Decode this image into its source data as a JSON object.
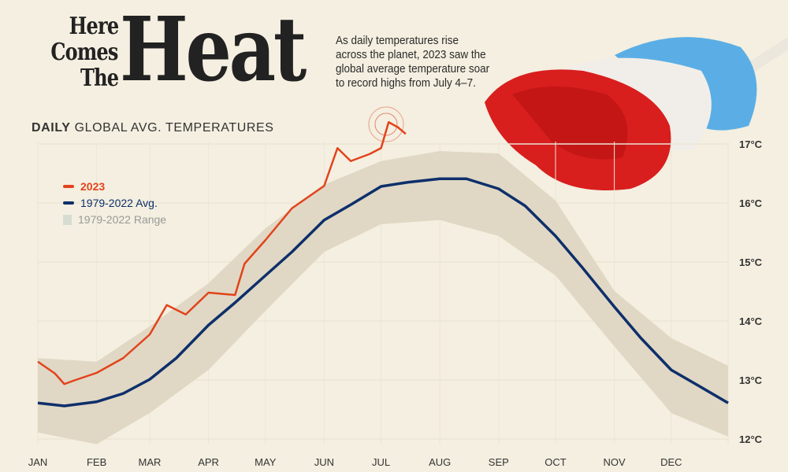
{
  "title": {
    "line1": "Here",
    "line2": "Comes",
    "line3": "The",
    "big": "Heat"
  },
  "description": "As daily temperatures rise across the planet, 2023 saw the global average temperature soar to record highs from July 4–7.",
  "subtitle": {
    "bold": "DAILY",
    "rest": "GLOBAL AVG. TEMPERATURES"
  },
  "legend": [
    {
      "label": "2023",
      "color": "#e2431c"
    },
    {
      "label": "1979-2022 Avg.",
      "color": "#0e2f6b"
    },
    {
      "label": "1979-2022 Range",
      "color": "#d6dcd2"
    }
  ],
  "illustration": "red-white-blue-popsicle",
  "chart_data": {
    "type": "line",
    "title": "DAILY GLOBAL AVG. TEMPERATURES",
    "x_ticks": [
      "JAN",
      "FEB",
      "MAR",
      "APR",
      "MAY",
      "JUN",
      "JUL",
      "AUG",
      "SEP",
      "OCT",
      "NOV",
      "DEC"
    ],
    "y_ticks": [
      "12°C",
      "13°C",
      "14°C",
      "15°C",
      "16°C",
      "17°C"
    ],
    "ylim": [
      12,
      17
    ],
    "grid": true,
    "legend_position": "left",
    "series": [
      {
        "name": "1979-2022 Range",
        "type": "area",
        "color": "#e0d8c4",
        "upper": [
          [
            "01-01",
            13.37
          ],
          [
            "02-01",
            13.31
          ],
          [
            "03-01",
            13.91
          ],
          [
            "04-01",
            14.64
          ],
          [
            "05-01",
            15.57
          ],
          [
            "06-01",
            16.31
          ],
          [
            "07-01",
            16.71
          ],
          [
            "08-01",
            16.88
          ],
          [
            "09-01",
            16.84
          ],
          [
            "10-01",
            16.04
          ],
          [
            "11-01",
            14.51
          ],
          [
            "12-01",
            13.71
          ],
          [
            "12-31",
            13.24
          ]
        ],
        "lower": [
          [
            "01-01",
            12.11
          ],
          [
            "02-01",
            11.91
          ],
          [
            "03-01",
            12.44
          ],
          [
            "04-01",
            13.17
          ],
          [
            "05-01",
            14.17
          ],
          [
            "06-01",
            15.17
          ],
          [
            "07-01",
            15.64
          ],
          [
            "08-01",
            15.71
          ],
          [
            "09-01",
            15.44
          ],
          [
            "10-01",
            14.77
          ],
          [
            "11-01",
            13.57
          ],
          [
            "12-01",
            12.44
          ],
          [
            "12-31",
            12.04
          ]
        ]
      },
      {
        "name": "1979-2022 Avg.",
        "color": "#0e2f6b",
        "points": [
          [
            "01-01",
            12.61
          ],
          [
            "01-15",
            12.56
          ],
          [
            "02-01",
            12.63
          ],
          [
            "02-15",
            12.77
          ],
          [
            "03-01",
            13.01
          ],
          [
            "03-15",
            13.37
          ],
          [
            "04-01",
            13.93
          ],
          [
            "04-15",
            14.31
          ],
          [
            "05-01",
            14.77
          ],
          [
            "05-15",
            15.17
          ],
          [
            "06-01",
            15.71
          ],
          [
            "06-15",
            15.97
          ],
          [
            "07-01",
            16.28
          ],
          [
            "07-15",
            16.35
          ],
          [
            "08-01",
            16.41
          ],
          [
            "08-15",
            16.41
          ],
          [
            "09-01",
            16.24
          ],
          [
            "09-15",
            15.95
          ],
          [
            "10-01",
            15.44
          ],
          [
            "10-15",
            14.91
          ],
          [
            "11-01",
            14.24
          ],
          [
            "11-15",
            13.71
          ],
          [
            "12-01",
            13.17
          ],
          [
            "12-15",
            12.91
          ],
          [
            "12-31",
            12.61
          ]
        ]
      },
      {
        "name": "2023",
        "color": "#e2431c",
        "points": [
          [
            "01-01",
            13.31
          ],
          [
            "01-10",
            13.11
          ],
          [
            "01-15",
            12.93
          ],
          [
            "01-20",
            12.99
          ],
          [
            "02-01",
            13.12
          ],
          [
            "02-15",
            13.37
          ],
          [
            "03-01",
            13.77
          ],
          [
            "03-10",
            14.27
          ],
          [
            "03-20",
            14.11
          ],
          [
            "04-01",
            14.48
          ],
          [
            "04-15",
            14.44
          ],
          [
            "04-20",
            14.97
          ],
          [
            "05-01",
            15.37
          ],
          [
            "05-15",
            15.91
          ],
          [
            "06-01",
            16.29
          ],
          [
            "06-08",
            16.93
          ],
          [
            "06-15",
            16.71
          ],
          [
            "06-25",
            16.83
          ],
          [
            "07-01",
            16.93
          ],
          [
            "07-05",
            17.37
          ],
          [
            "07-10",
            17.28
          ],
          [
            "07-14",
            17.17
          ]
        ]
      }
    ]
  }
}
